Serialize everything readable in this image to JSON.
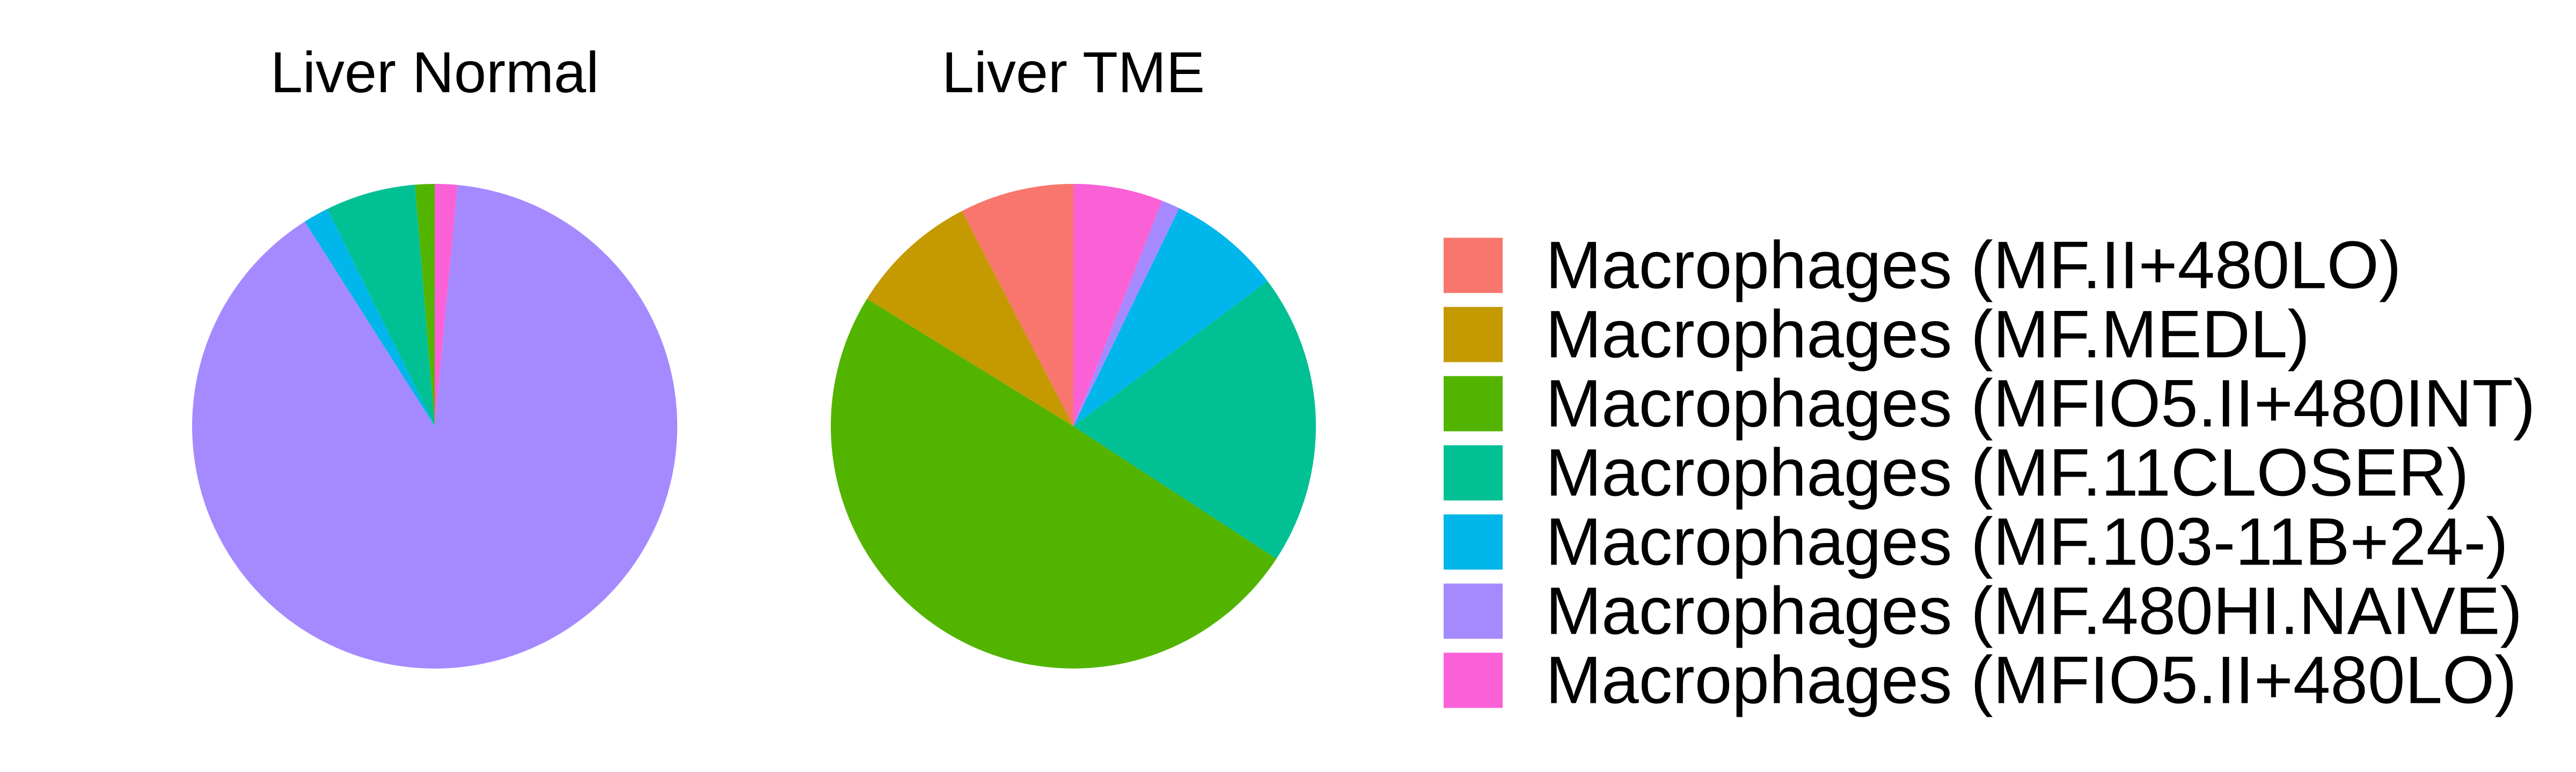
{
  "chart_data": {
    "type": "pie",
    "legend_position": "right",
    "categories": [
      "Macrophages (MF.II+480LO)",
      "Macrophages (MF.MEDL)",
      "Macrophages (MFIO5.II+480INT)",
      "Macrophages (MF.11CLOSER)",
      "Macrophages (MF.103-11B+24-)",
      "Macrophages (MF.480HI.NAIVE)",
      "Macrophages (MFIO5.II+480LO)"
    ],
    "colors": [
      "#F8766D",
      "#C49A00",
      "#53B400",
      "#00C094",
      "#00B6EB",
      "#A58AFF",
      "#FB61D7"
    ],
    "panels": [
      {
        "title": "Liver Normal",
        "values": [
          0.0,
          0.0,
          1.3,
          6.0,
          1.7,
          89.5,
          1.5
        ]
      },
      {
        "title": "Liver TME",
        "values": [
          7.5,
          8.5,
          49.0,
          19.2,
          7.5,
          1.2,
          5.9
        ]
      }
    ]
  }
}
